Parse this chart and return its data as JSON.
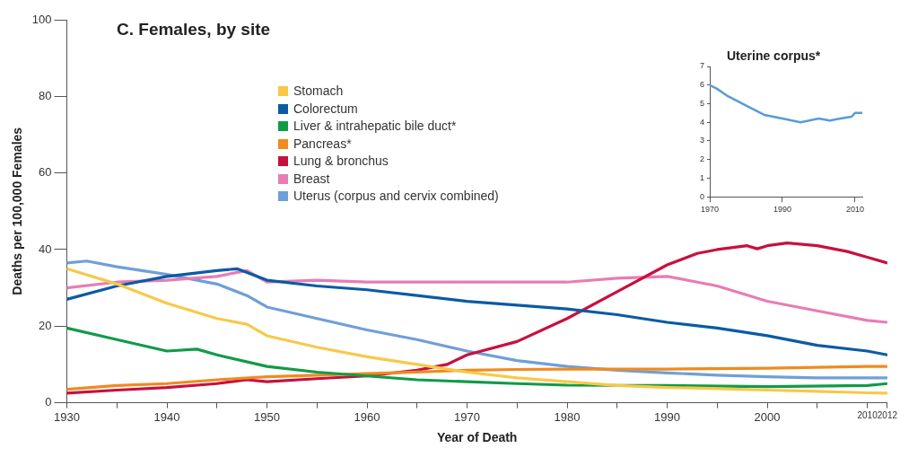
{
  "chart_data": [
    {
      "type": "line",
      "title": "C. Females, by site",
      "xlabel": "Year of Death",
      "ylabel": "Deaths per 100,000 Females",
      "xlim": [
        1930,
        2012
      ],
      "xticks": [
        1930,
        {
          "value": 1935,
          "label": null
        },
        1940,
        {
          "value": 1945,
          "label": null
        },
        1950,
        {
          "value": 1955,
          "label": null
        },
        1960,
        {
          "value": 1965,
          "label": null
        },
        1970,
        {
          "value": 1975,
          "label": null
        },
        1980,
        {
          "value": 1985,
          "label": null
        },
        1990,
        {
          "value": 1995,
          "label": null
        },
        2000,
        {
          "value": 2005,
          "label": null
        },
        2010,
        2012
      ],
      "ylim": [
        0,
        100
      ],
      "yticks": [
        0,
        20,
        40,
        60,
        80,
        100
      ],
      "grid": false,
      "legend": "top",
      "marker": "none",
      "line_style": "solid",
      "series": [
        {
          "name": "Stomach",
          "color": "#f7c948",
          "x": [
            1930,
            1935,
            1940,
            1945,
            1948,
            1950,
            1955,
            1960,
            1965,
            1970,
            1975,
            1980,
            1985,
            1990,
            1995,
            2000,
            2005,
            2010,
            2012
          ],
          "values": [
            35,
            31,
            26,
            22,
            20.5,
            17.5,
            14.5,
            12,
            10,
            8,
            6.5,
            5.5,
            4.5,
            4,
            3.7,
            3.3,
            3,
            2.6,
            2.5
          ]
        },
        {
          "name": "Colorectum",
          "color": "#0b5ba4",
          "x": [
            1930,
            1935,
            1940,
            1945,
            1947,
            1950,
            1955,
            1960,
            1965,
            1970,
            1975,
            1980,
            1985,
            1990,
            1995,
            2000,
            2005,
            2010,
            2012
          ],
          "values": [
            27,
            30.5,
            33,
            34.5,
            35,
            32,
            30.5,
            29.5,
            28,
            26.5,
            25.5,
            24.5,
            23,
            21,
            19.5,
            17.5,
            15,
            13.5,
            12.5
          ]
        },
        {
          "name": "Liver & intrahepatic bile duct*",
          "color": "#109b48",
          "x": [
            1930,
            1935,
            1940,
            1943,
            1945,
            1950,
            1955,
            1960,
            1965,
            1970,
            1975,
            1980,
            1990,
            2000,
            2010,
            2012
          ],
          "values": [
            19.5,
            16.5,
            13.5,
            14,
            12.5,
            9.5,
            8,
            7,
            6,
            5.5,
            5,
            4.6,
            4.5,
            4.2,
            4.5,
            5
          ]
        },
        {
          "name": "Pancreas*",
          "color": "#ef8b1f",
          "x": [
            1930,
            1935,
            1940,
            1945,
            1950,
            1955,
            1960,
            1965,
            1970,
            1975,
            1980,
            1990,
            2000,
            2010,
            2012
          ],
          "values": [
            3.5,
            4.5,
            5,
            6,
            6.8,
            7.2,
            7.6,
            8,
            8.5,
            8.7,
            8.8,
            8.8,
            9,
            9.5,
            9.5
          ]
        },
        {
          "name": "Lung & bronchus",
          "color": "#c8103e",
          "x": [
            1930,
            1935,
            1940,
            1945,
            1948,
            1950,
            1955,
            1960,
            1965,
            1968,
            1970,
            1975,
            1980,
            1985,
            1990,
            1993,
            1995,
            1998,
            1999,
            2000,
            2002,
            2005,
            2008,
            2010,
            2012
          ],
          "values": [
            2.5,
            3.3,
            4,
            5,
            6,
            5.5,
            6.3,
            7,
            8.5,
            10,
            12.5,
            16,
            22,
            29,
            36,
            39,
            40,
            41,
            40.2,
            41,
            41.7,
            41,
            39.5,
            38,
            36.5
          ]
        },
        {
          "name": "Breast",
          "color": "#e87cb5",
          "x": [
            1930,
            1935,
            1940,
            1945,
            1948,
            1950,
            1955,
            1960,
            1965,
            1970,
            1975,
            1980,
            1985,
            1990,
            1995,
            2000,
            2005,
            2010,
            2012
          ],
          "values": [
            30,
            31.5,
            32,
            33,
            34.5,
            31.5,
            32,
            31.5,
            31.5,
            31.5,
            31.5,
            31.5,
            32.5,
            33,
            30.5,
            26.5,
            24,
            21.5,
            21
          ]
        },
        {
          "name": "Uterus (corpus and cervix combined)",
          "color": "#6f9fd8",
          "x": [
            1930,
            1932,
            1935,
            1940,
            1945,
            1948,
            1950,
            1955,
            1960,
            1965,
            1970,
            1975,
            1980,
            1985,
            1990,
            1995,
            2000,
            2005,
            2010,
            2012
          ],
          "values": [
            36.5,
            37,
            35.5,
            33.5,
            31,
            28,
            25,
            22,
            19,
            16.5,
            13.5,
            11,
            9.5,
            8.5,
            7.8,
            7.2,
            6.8,
            6.5,
            6.5,
            6.5
          ]
        }
      ]
    },
    {
      "type": "line",
      "title": "Uterine corpus*",
      "xlim": [
        1970,
        2012
      ],
      "xticks": [
        1970,
        1990,
        2010
      ],
      "ylim": [
        0,
        7
      ],
      "yticks": [
        0,
        1,
        2,
        3,
        4,
        5,
        6,
        7
      ],
      "grid": false,
      "marker": "none",
      "series": [
        {
          "color": "#5b9bd5",
          "x": [
            1970,
            1972,
            1975,
            1978,
            1980,
            1985,
            1990,
            1995,
            2000,
            2003,
            2006,
            2009,
            2010,
            2012
          ],
          "values": [
            6,
            5.8,
            5.4,
            5.1,
            4.9,
            4.4,
            4.2,
            4,
            4.2,
            4.1,
            4.2,
            4.3,
            4.5,
            4.5
          ]
        }
      ]
    }
  ]
}
